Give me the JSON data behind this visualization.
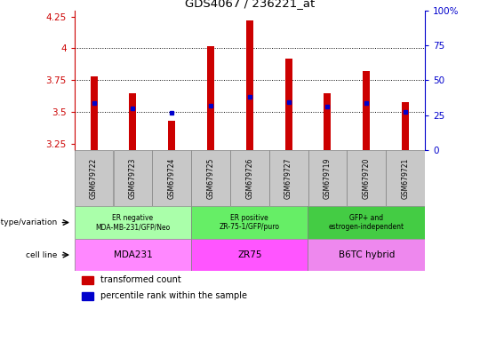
{
  "title": "GDS4067 / 236221_at",
  "samples": [
    "GSM679722",
    "GSM679723",
    "GSM679724",
    "GSM679725",
    "GSM679726",
    "GSM679727",
    "GSM679719",
    "GSM679720",
    "GSM679721"
  ],
  "red_values": [
    3.78,
    3.65,
    3.43,
    4.02,
    4.22,
    3.92,
    3.65,
    3.82,
    3.58
  ],
  "blue_values": [
    3.57,
    3.53,
    3.49,
    3.55,
    3.62,
    3.58,
    3.54,
    3.57,
    3.5
  ],
  "ylim_left": [
    3.2,
    4.3
  ],
  "ylim_right": [
    0,
    100
  ],
  "yticks_left": [
    3.25,
    3.5,
    3.75,
    4.0,
    4.25
  ],
  "yticks_right": [
    0,
    25,
    50,
    75,
    100
  ],
  "ytick_labels_left": [
    "3.25",
    "3.5",
    "3.75",
    "4",
    "4.25"
  ],
  "ytick_labels_right": [
    "0",
    "25",
    "50",
    "75",
    "100%"
  ],
  "groups": [
    {
      "label": "ER negative\nMDA-MB-231/GFP/Neo",
      "cell_line": "MDA231",
      "start": 0,
      "end": 3,
      "color_gt": "#aaffaa",
      "color_cl": "#ff88ff"
    },
    {
      "label": "ER positive\nZR-75-1/GFP/puro",
      "cell_line": "ZR75",
      "start": 3,
      "end": 6,
      "color_gt": "#66ee66",
      "color_cl": "#ff55ff"
    },
    {
      "label": "GFP+ and\nestrogen-independent",
      "cell_line": "B6TC hybrid",
      "start": 6,
      "end": 9,
      "color_gt": "#44cc44",
      "color_cl": "#ee88ee"
    }
  ],
  "bar_color": "#cc0000",
  "dot_color": "#0000cc",
  "grid_color": "#000000",
  "axis_color_left": "#cc0000",
  "axis_color_right": "#0000cc",
  "bg_plot": "#ffffff",
  "bg_sample_row": "#c8c8c8",
  "legend_red": "transformed count",
  "legend_blue": "percentile rank within the sample",
  "bar_width": 0.18
}
